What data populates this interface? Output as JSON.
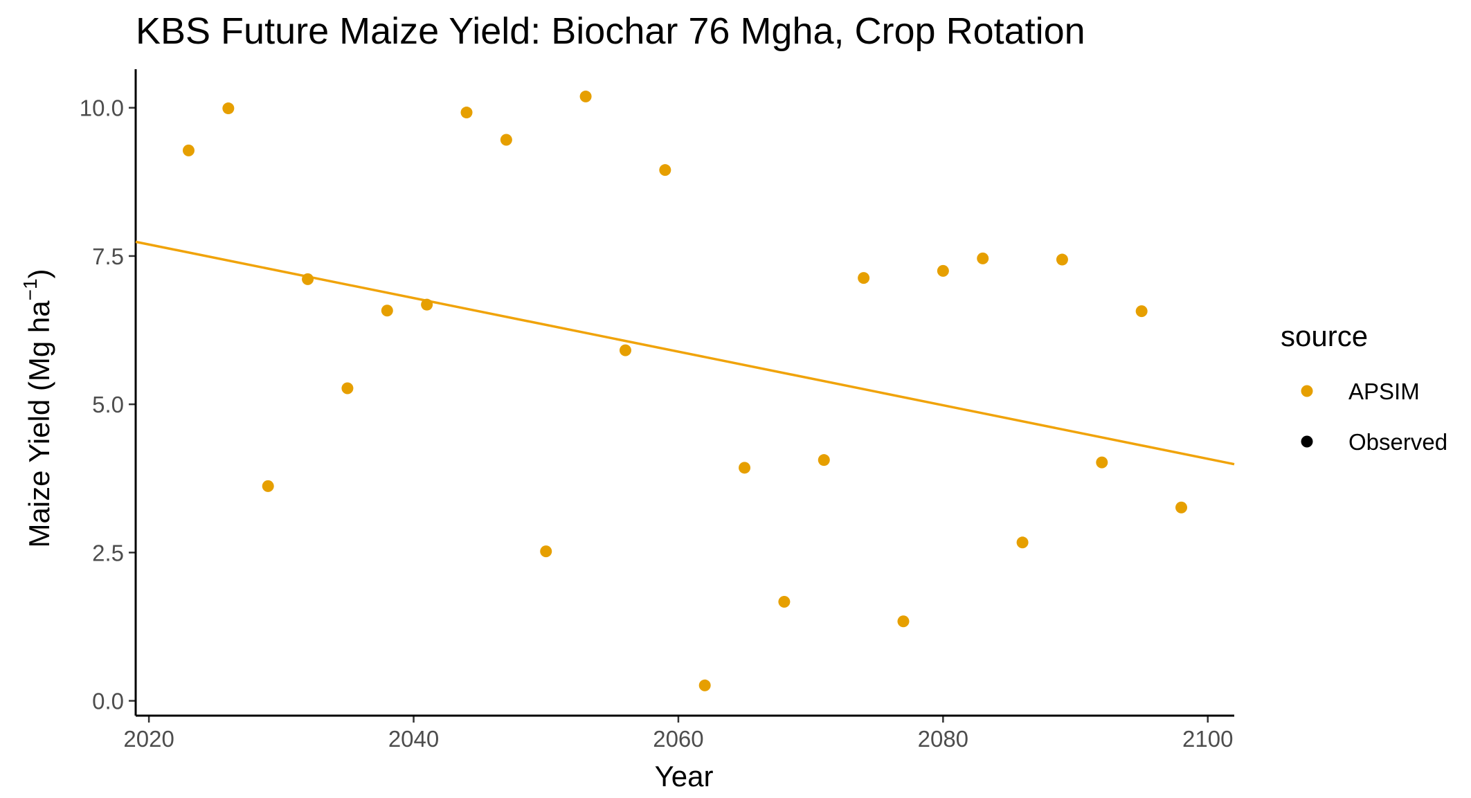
{
  "chart_data": {
    "type": "scatter",
    "title": "KBS Future Maize Yield:  Biochar 76 Mgha, Crop Rotation",
    "xlabel": "Year",
    "ylabel": "Maize Yield (Mg ha",
    "ylabel_superscript": "−1",
    "ylabel_suffix": ")",
    "xlim": [
      2019,
      2102
    ],
    "ylim": [
      -0.25,
      10.65
    ],
    "x_ticks": [
      2020,
      2040,
      2060,
      2080,
      2100
    ],
    "y_ticks": [
      0,
      2.5,
      5,
      7.5,
      10
    ],
    "y_tick_labels": [
      "0.0",
      "2.5",
      "5.0",
      "7.5",
      "10.0"
    ],
    "grid": false,
    "legend": {
      "title": "source",
      "placement": "right",
      "entries": [
        {
          "label": "APSIM",
          "color": "#E69F00"
        },
        {
          "label": "Observed",
          "color": "#000000"
        }
      ]
    },
    "series": [
      {
        "name": "APSIM",
        "color": "#E69F00",
        "points": [
          {
            "x": 2023,
            "y": 9.28
          },
          {
            "x": 2026,
            "y": 9.99
          },
          {
            "x": 2029,
            "y": 3.62
          },
          {
            "x": 2032,
            "y": 7.11
          },
          {
            "x": 2035,
            "y": 5.27
          },
          {
            "x": 2038,
            "y": 6.58
          },
          {
            "x": 2041,
            "y": 6.68
          },
          {
            "x": 2044,
            "y": 9.92
          },
          {
            "x": 2047,
            "y": 9.46
          },
          {
            "x": 2050,
            "y": 2.52
          },
          {
            "x": 2053,
            "y": 10.19
          },
          {
            "x": 2056,
            "y": 5.91
          },
          {
            "x": 2059,
            "y": 8.95
          },
          {
            "x": 2062,
            "y": 0.26
          },
          {
            "x": 2065,
            "y": 3.93
          },
          {
            "x": 2068,
            "y": 1.67
          },
          {
            "x": 2071,
            "y": 4.06
          },
          {
            "x": 2074,
            "y": 7.13
          },
          {
            "x": 2077,
            "y": 1.34
          },
          {
            "x": 2080,
            "y": 7.25
          },
          {
            "x": 2083,
            "y": 7.46
          },
          {
            "x": 2086,
            "y": 2.67
          },
          {
            "x": 2089,
            "y": 7.44
          },
          {
            "x": 2092,
            "y": 4.02
          },
          {
            "x": 2095,
            "y": 6.57
          },
          {
            "x": 2098,
            "y": 3.26
          }
        ]
      }
    ],
    "trendline": {
      "series": "APSIM",
      "color": "#F0A30A",
      "x": [
        2019,
        2102
      ],
      "y": [
        7.74,
        3.99
      ]
    }
  }
}
